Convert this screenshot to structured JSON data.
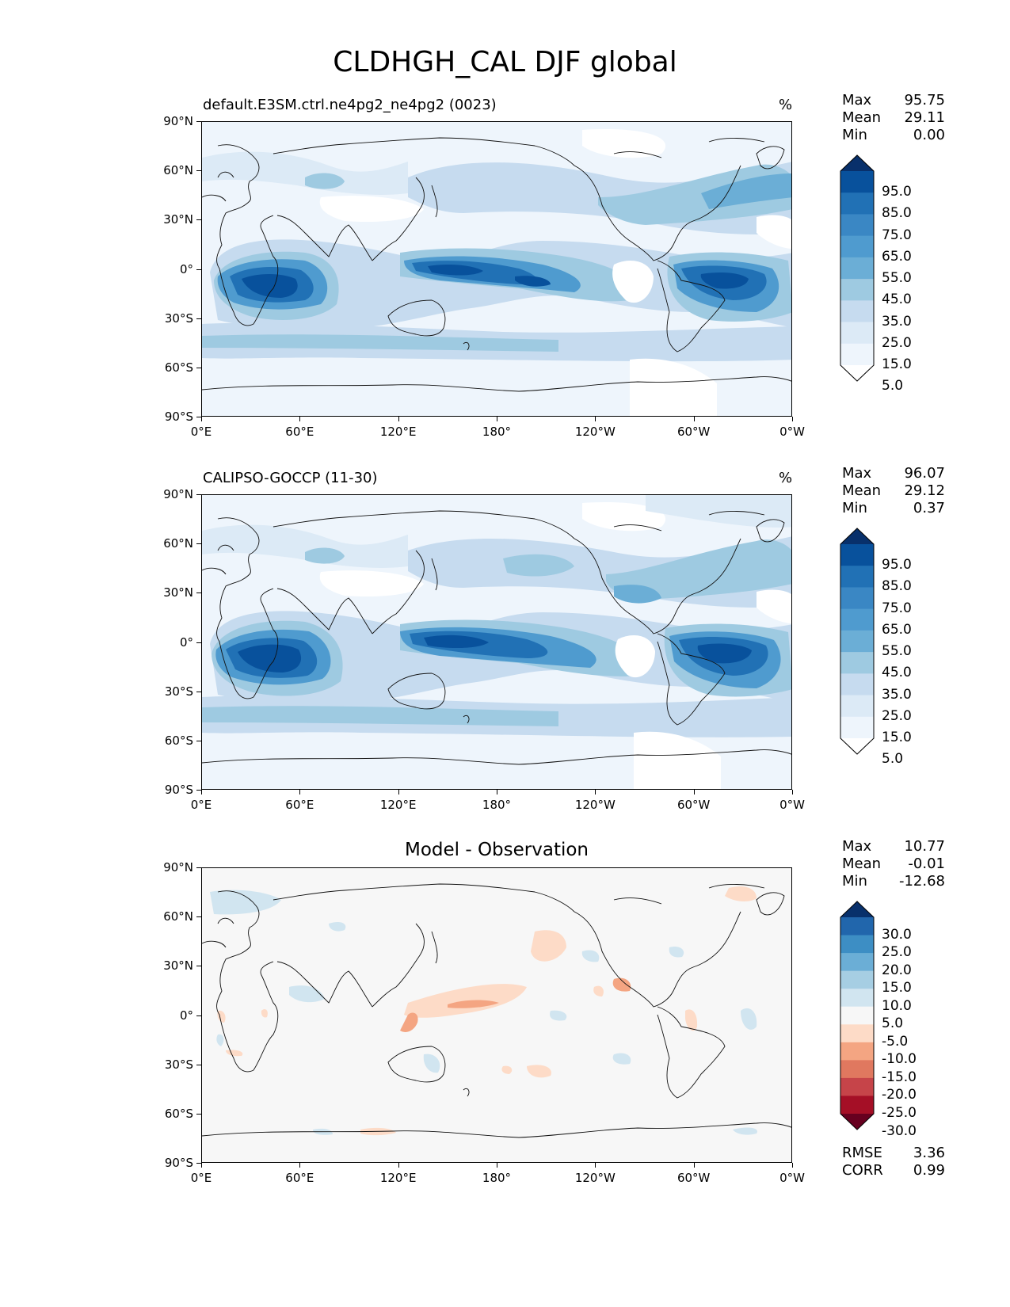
{
  "figure": {
    "title": "CLDHGH_CAL DJF global"
  },
  "axes": {
    "lat_ticks": [
      "90°N",
      "60°N",
      "30°N",
      "0°",
      "30°S",
      "60°S",
      "90°S"
    ],
    "lon_ticks": [
      "0°E",
      "60°E",
      "120°E",
      "180°",
      "120°W",
      "60°W",
      "0°W"
    ]
  },
  "panels": [
    {
      "id": "model",
      "title": "default.E3SM.ctrl.ne4pg2_ne4pg2 (0023)",
      "units": "%",
      "stats": [
        {
          "label": "Max",
          "value": "95.75"
        },
        {
          "label": "Mean",
          "value": "29.11"
        },
        {
          "label": "Min",
          "value": "0.00"
        }
      ],
      "colorbar": {
        "labels": [
          "95.0",
          "85.0",
          "75.0",
          "65.0",
          "55.0",
          "45.0",
          "35.0",
          "25.0",
          "15.0",
          "5.0"
        ],
        "colors": [
          "#08306b",
          "#08519c",
          "#2171b5",
          "#3a87c4",
          "#4f9bcf",
          "#6baed6",
          "#9ecae1",
          "#c6dbef",
          "#dceaf6",
          "#eef5fc",
          "#ffffff"
        ]
      }
    },
    {
      "id": "obs",
      "title": "CALIPSO-GOCCP (11-30)",
      "units": "%",
      "stats": [
        {
          "label": "Max",
          "value": "96.07"
        },
        {
          "label": "Mean",
          "value": "29.12"
        },
        {
          "label": "Min",
          "value": "0.37"
        }
      ],
      "colorbar": {
        "labels": [
          "95.0",
          "85.0",
          "75.0",
          "65.0",
          "55.0",
          "45.0",
          "35.0",
          "25.0",
          "15.0",
          "5.0"
        ],
        "colors": [
          "#08306b",
          "#08519c",
          "#2171b5",
          "#3a87c4",
          "#4f9bcf",
          "#6baed6",
          "#9ecae1",
          "#c6dbef",
          "#dceaf6",
          "#eef5fc",
          "#ffffff"
        ]
      }
    },
    {
      "id": "diff",
      "title": "Model - Observation",
      "stats": [
        {
          "label": "Max",
          "value": "10.77"
        },
        {
          "label": "Mean",
          "value": "-0.01"
        },
        {
          "label": "Min",
          "value": "-12.68"
        }
      ],
      "extra_stats": [
        {
          "label": "RMSE",
          "value": "3.36"
        },
        {
          "label": "CORR",
          "value": "0.99"
        }
      ],
      "colorbar": {
        "labels": [
          "30.0",
          "25.0",
          "20.0",
          "15.0",
          "10.0",
          "5.0",
          "-5.0",
          "-10.0",
          "-15.0",
          "-20.0",
          "-25.0",
          "-30.0"
        ],
        "colors": [
          "#08306b",
          "#2166ac",
          "#3d8ec4",
          "#6baed6",
          "#a6cee3",
          "#d1e5f0",
          "#f7f7f7",
          "#fddbc7",
          "#f4a582",
          "#e0785f",
          "#c64449",
          "#a50f26",
          "#67001f"
        ]
      }
    }
  ]
}
